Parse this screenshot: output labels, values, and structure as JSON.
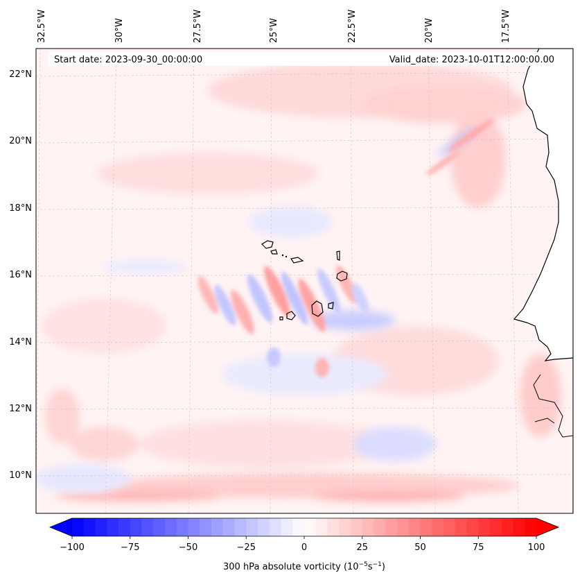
{
  "header": {
    "start_date": "Start date: 2023-09-30_00:00:00",
    "valid_date": "Valid_date: 2023-10-01T12:00:00.00"
  },
  "lon_labels": [
    "32.5°W",
    "30°W",
    "27.5°W",
    "25°W",
    "22.5°W",
    "20°W",
    "17.5°W"
  ],
  "lat_labels": [
    "22°N",
    "20°N",
    "18°N",
    "16°N",
    "14°N",
    "12°N",
    "10°N"
  ],
  "colorbar": {
    "ticks": [
      "−100",
      "−75",
      "−50",
      "−25",
      "0",
      "25",
      "50",
      "75",
      "100"
    ],
    "label": "300 hPa absolute vorticity (10",
    "label_exp1": "−5",
    "label_mid": "s",
    "label_exp2": "−1",
    "label_end": ")",
    "min_color": "#0000ff",
    "mid_color": "#ffffff",
    "max_color": "#ff0000"
  },
  "colors": {
    "background_field": "#fff3f3",
    "land": "#ffffff",
    "coastline": "#000000",
    "grid": "#c8c8c8"
  }
}
